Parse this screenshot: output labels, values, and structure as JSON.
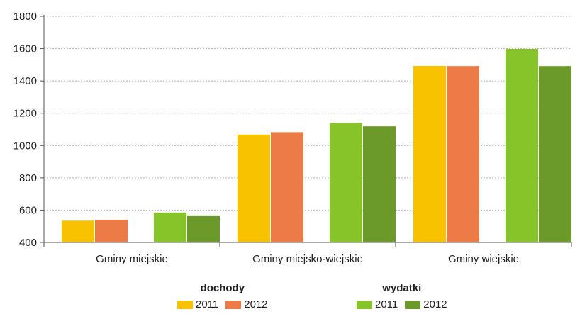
{
  "chart_data": {
    "type": "bar",
    "categories": [
      "Gminy miejskie",
      "Gminy miejsko-wiejskie",
      "Gminy wiejskie"
    ],
    "ylim": [
      400,
      1800
    ],
    "yticks": [
      400,
      600,
      800,
      1000,
      1200,
      1400,
      1600,
      1800
    ],
    "grid": true,
    "legend_position": "bottom",
    "groups": [
      {
        "title": "dochody",
        "series": [
          {
            "name": "2011",
            "color": "#F8C200",
            "values": [
              535,
              1068,
              1493
            ]
          },
          {
            "name": "2012",
            "color": "#EC7B47",
            "values": [
              540,
              1083,
              1492
            ]
          }
        ]
      },
      {
        "title": "wydatki",
        "series": [
          {
            "name": "2011",
            "color": "#86C42A",
            "values": [
              585,
              1140,
              1598
            ]
          },
          {
            "name": "2012",
            "color": "#6C9A2A",
            "values": [
              563,
              1119,
              1492
            ]
          }
        ]
      }
    ]
  }
}
